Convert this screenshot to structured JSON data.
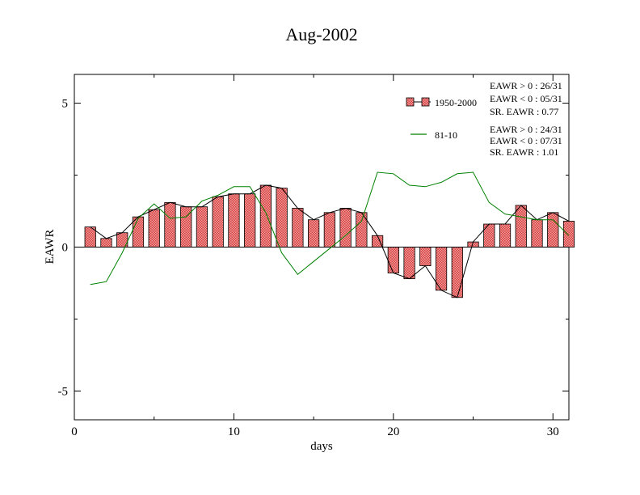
{
  "chart_data": {
    "type": "bar",
    "title": "Aug-2002",
    "xlabel": "days",
    "ylabel": "EAWR",
    "xlim": [
      0,
      31
    ],
    "ylim": [
      -6,
      6
    ],
    "xticks": [
      0,
      10,
      20,
      30
    ],
    "yticks": [
      -5,
      0,
      5
    ],
    "x": [
      1,
      2,
      3,
      4,
      5,
      6,
      7,
      8,
      9,
      10,
      11,
      12,
      13,
      14,
      15,
      16,
      17,
      18,
      19,
      20,
      21,
      22,
      23,
      24,
      25,
      26,
      27,
      28,
      29,
      30,
      31
    ],
    "series": [
      {
        "name": "1950-2000",
        "kind": "bar+line",
        "color": "#f08080",
        "line_color": "#000000",
        "values": [
          0.7,
          0.3,
          0.5,
          1.05,
          1.3,
          1.55,
          1.4,
          1.4,
          1.75,
          1.85,
          1.85,
          2.15,
          2.05,
          1.35,
          0.95,
          1.2,
          1.35,
          1.2,
          0.4,
          -0.9,
          -1.1,
          -0.65,
          -1.5,
          -1.75,
          0.18,
          0.8,
          0.8,
          1.45,
          0.95,
          1.2,
          0.9
        ]
      },
      {
        "name": "81-10",
        "kind": "line",
        "color": "#008000",
        "values": [
          -1.3,
          -1.2,
          -0.2,
          1.0,
          1.5,
          1.0,
          1.05,
          1.6,
          1.8,
          2.1,
          2.1,
          1.2,
          -0.2,
          -0.95,
          -0.5,
          -0.05,
          0.4,
          0.9,
          2.6,
          2.55,
          2.15,
          2.1,
          2.25,
          2.55,
          2.6,
          1.55,
          1.15,
          1.05,
          0.95,
          0.95,
          0.4
        ]
      }
    ],
    "stats": [
      {
        "lines": [
          "EAWR > 0 : 26/31",
          "EAWR < 0 : 05/31",
          "SR. EAWR :  0.77"
        ]
      },
      {
        "lines": [
          "EAWR > 0 : 24/31",
          "EAWR < 0 : 07/31",
          "SR. EAWR :  1.01"
        ]
      }
    ],
    "legend_position": "top-right",
    "grid": false
  }
}
